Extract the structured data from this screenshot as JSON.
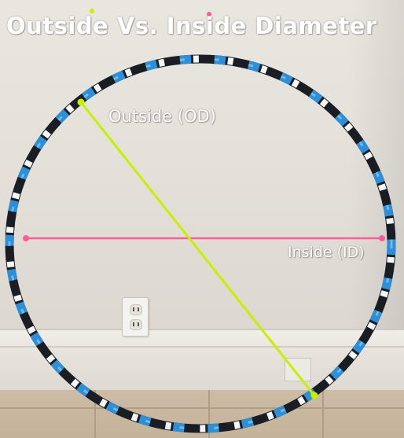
{
  "title": "Outside Vs. Inside Diameter",
  "labels": {
    "outside": "Outside (OD)",
    "inside": "Inside (ID)"
  },
  "colors": {
    "outside_line": "#c6f000",
    "inside_line": "#ff5c9b",
    "hoop_dark": "#1b1d24",
    "hoop_blue": "#2f8fd6",
    "hoop_white": "#f4f6f8"
  }
}
